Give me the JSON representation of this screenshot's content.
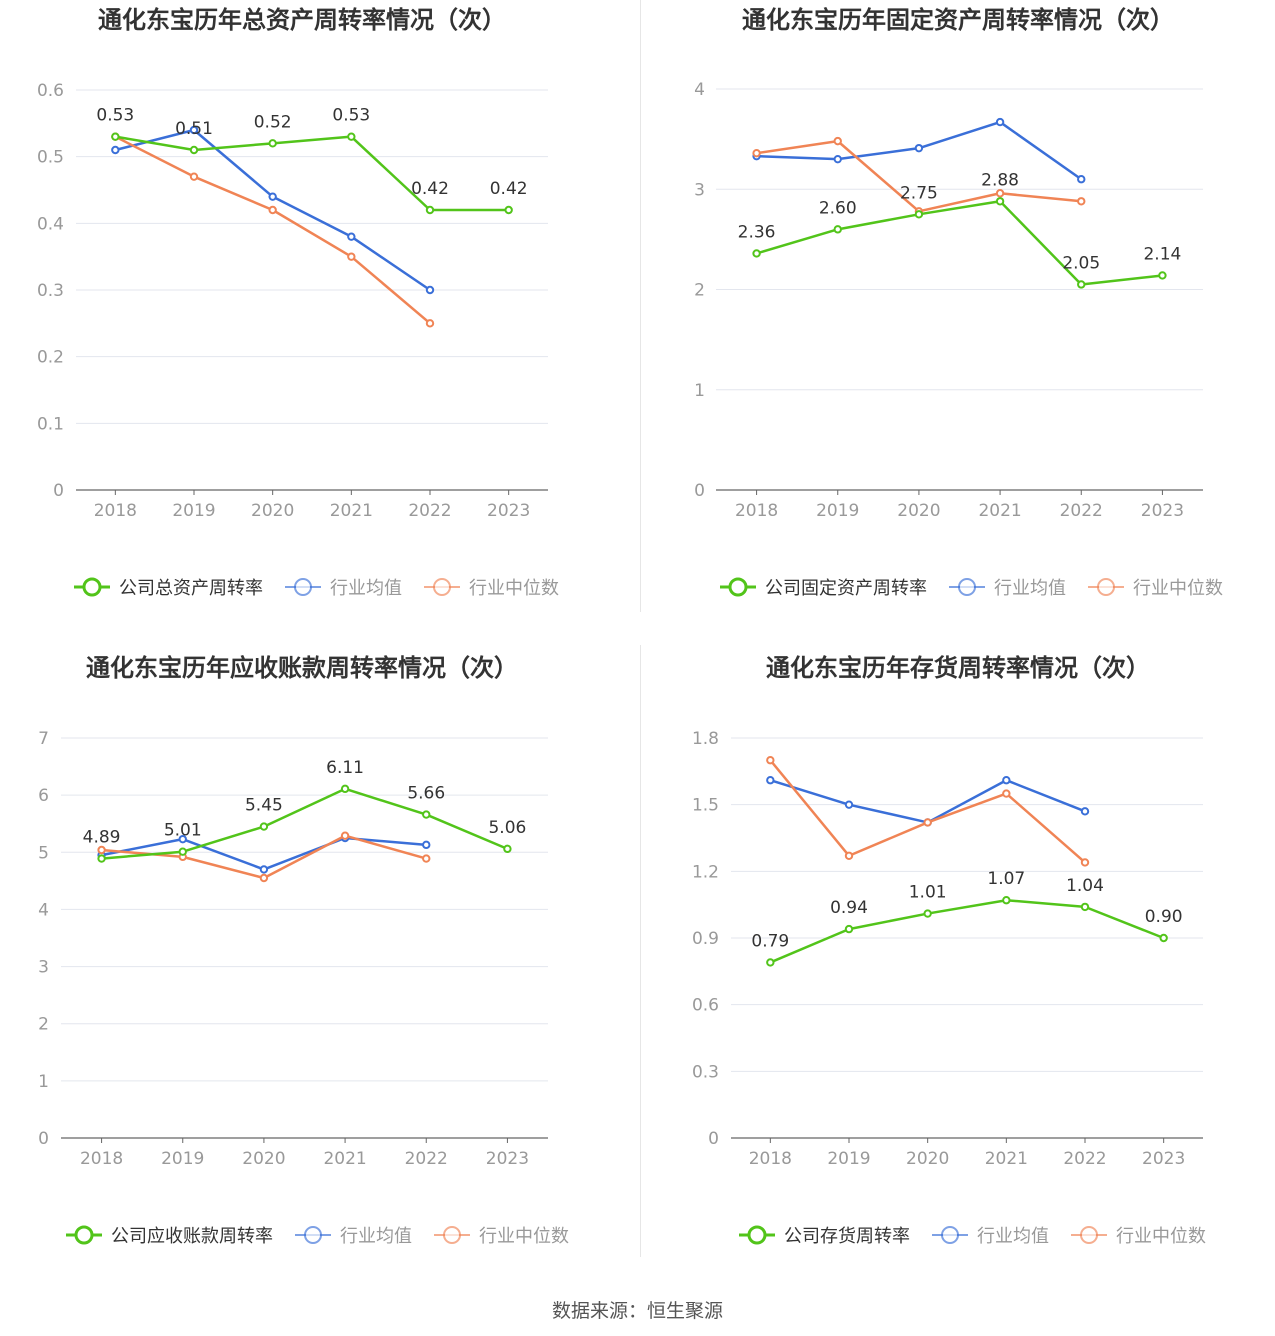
{
  "colors": {
    "company": "#52c41a",
    "avg": "#3a6fd8",
    "median": "#f08455",
    "grid": "#e3e6ee",
    "axis": "#666666",
    "tick": "#999999",
    "title": "#333333"
  },
  "footer": {
    "source": "数据来源：恒生聚源"
  },
  "chart_data": [
    {
      "type": "line",
      "title": "通化东宝历年总资产周转率情况（次）",
      "categories": [
        "2018",
        "2019",
        "2020",
        "2021",
        "2022",
        "2023"
      ],
      "ylim": [
        0,
        0.6
      ],
      "yticks": [
        "0",
        "0.1",
        "0.2",
        "0.3",
        "0.4",
        "0.5",
        "0.6"
      ],
      "grid": true,
      "legend_position": "bottom",
      "series": [
        {
          "name": "公司总资产周转率",
          "role": "company",
          "values": [
            0.53,
            0.51,
            0.52,
            0.53,
            0.42,
            0.42
          ],
          "labels": [
            "0.53",
            "0.51",
            "0.52",
            "0.53",
            "0.42",
            "0.42"
          ]
        },
        {
          "name": "行业均值",
          "role": "avg",
          "values": [
            0.51,
            0.54,
            0.44,
            0.38,
            0.3,
            null
          ]
        },
        {
          "name": "行业中位数",
          "role": "median",
          "values": [
            0.53,
            0.47,
            0.42,
            0.35,
            0.25,
            null
          ]
        }
      ]
    },
    {
      "type": "line",
      "title": "通化东宝历年固定资产周转率情况（次）",
      "categories": [
        "2018",
        "2019",
        "2020",
        "2021",
        "2022",
        "2023"
      ],
      "ylim": [
        0,
        4
      ],
      "yticks": [
        "0",
        "1",
        "2",
        "3",
        "4"
      ],
      "grid": true,
      "legend_position": "bottom",
      "series": [
        {
          "name": "公司固定资产周转率",
          "role": "company",
          "values": [
            2.36,
            2.6,
            2.75,
            2.88,
            2.05,
            2.14
          ],
          "labels": [
            "2.36",
            "2.60",
            "2.75",
            "2.88",
            "2.05",
            "2.14"
          ]
        },
        {
          "name": "行业均值",
          "role": "avg",
          "values": [
            3.33,
            3.3,
            3.41,
            3.67,
            3.1,
            null
          ]
        },
        {
          "name": "行业中位数",
          "role": "median",
          "values": [
            3.36,
            3.48,
            2.78,
            2.96,
            2.88,
            null
          ]
        }
      ]
    },
    {
      "type": "line",
      "title": "通化东宝历年应收账款周转率情况（次）",
      "categories": [
        "2018",
        "2019",
        "2020",
        "2021",
        "2022",
        "2023"
      ],
      "ylim": [
        0,
        7
      ],
      "yticks": [
        "0",
        "1",
        "2",
        "3",
        "4",
        "5",
        "6",
        "7"
      ],
      "grid": true,
      "legend_position": "bottom",
      "series": [
        {
          "name": "公司应收账款周转率",
          "role": "company",
          "values": [
            4.89,
            5.01,
            5.45,
            6.11,
            5.66,
            5.06
          ],
          "labels": [
            "4.89",
            "5.01",
            "5.45",
            "6.11",
            "5.66",
            "5.06"
          ]
        },
        {
          "name": "行业均值",
          "role": "avg",
          "values": [
            4.95,
            5.23,
            4.7,
            5.25,
            5.13,
            null
          ]
        },
        {
          "name": "行业中位数",
          "role": "median",
          "values": [
            5.04,
            4.92,
            4.55,
            5.29,
            4.89,
            null
          ]
        }
      ]
    },
    {
      "type": "line",
      "title": "通化东宝历年存货周转率情况（次）",
      "categories": [
        "2018",
        "2019",
        "2020",
        "2021",
        "2022",
        "2023"
      ],
      "ylim": [
        0,
        1.8
      ],
      "yticks": [
        "0",
        "0.3",
        "0.6",
        "0.9",
        "1.2",
        "1.5",
        "1.8"
      ],
      "grid": true,
      "legend_position": "bottom",
      "series": [
        {
          "name": "公司存货周转率",
          "role": "company",
          "values": [
            0.79,
            0.94,
            1.01,
            1.07,
            1.04,
            0.9
          ],
          "labels": [
            "0.79",
            "0.94",
            "1.01",
            "1.07",
            "1.04",
            "0.90"
          ]
        },
        {
          "name": "行业均值",
          "role": "avg",
          "values": [
            1.61,
            1.5,
            1.42,
            1.61,
            1.47,
            null
          ]
        },
        {
          "name": "行业中位数",
          "role": "median",
          "values": [
            1.7,
            1.27,
            1.42,
            1.55,
            1.24,
            null
          ]
        }
      ]
    }
  ]
}
